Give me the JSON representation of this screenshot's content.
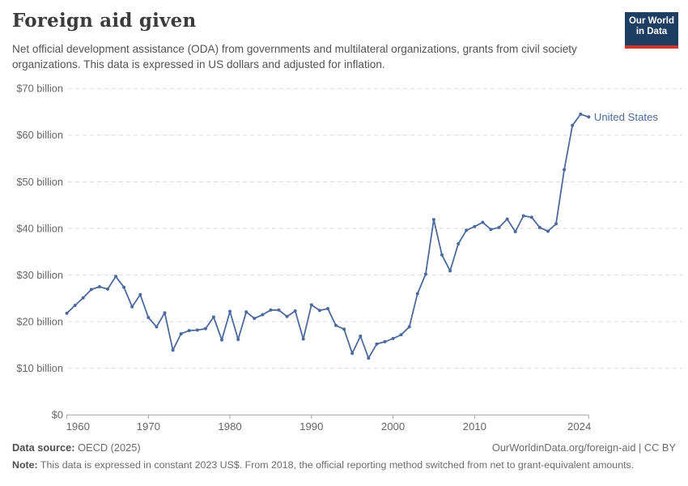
{
  "header": {
    "title": "Foreign aid given",
    "subtitle": "Net official development assistance (ODA) from governments and multilateral organizations, grants from civil society organizations. This data is expressed in US dollars and adjusted for inflation.",
    "logo": {
      "line1": "Our World",
      "line2": "in Data"
    }
  },
  "chart_data": {
    "type": "line",
    "title": "Foreign aid given",
    "xlabel": "",
    "ylabel": "",
    "xlim": [
      1960,
      2024
    ],
    "ylim": [
      0,
      70
    ],
    "grid": "horizontal-dashed",
    "legend_position": "end-of-line-label",
    "x_ticks": [
      {
        "year": 1960,
        "label": "1960"
      },
      {
        "year": 1970,
        "label": "1970"
      },
      {
        "year": 1980,
        "label": "1980"
      },
      {
        "year": 1990,
        "label": "1990"
      },
      {
        "year": 2000,
        "label": "2000"
      },
      {
        "year": 2010,
        "label": "2010"
      },
      {
        "year": 2024,
        "label": "2024"
      }
    ],
    "y_ticks": [
      {
        "value": 0,
        "label": "$0"
      },
      {
        "value": 10,
        "label": "$10 billion"
      },
      {
        "value": 20,
        "label": "$20 billion"
      },
      {
        "value": 30,
        "label": "$30 billion"
      },
      {
        "value": 40,
        "label": "$40 billion"
      },
      {
        "value": 50,
        "label": "$50 billion"
      },
      {
        "value": 60,
        "label": "$60 billion"
      },
      {
        "value": 70,
        "label": "$70 billion"
      }
    ],
    "series": [
      {
        "name": "United States",
        "color": "#4c6a9c",
        "unit": "US$ billion (constant 2023)",
        "x": [
          1960,
          1961,
          1962,
          1963,
          1964,
          1965,
          1966,
          1967,
          1968,
          1969,
          1970,
          1971,
          1972,
          1973,
          1974,
          1975,
          1976,
          1977,
          1978,
          1979,
          1980,
          1981,
          1982,
          1983,
          1984,
          1985,
          1986,
          1987,
          1988,
          1989,
          1990,
          1991,
          1992,
          1993,
          1994,
          1995,
          1996,
          1997,
          1998,
          1999,
          2000,
          2001,
          2002,
          2003,
          2004,
          2005,
          2006,
          2007,
          2008,
          2009,
          2010,
          2011,
          2012,
          2013,
          2014,
          2015,
          2016,
          2017,
          2018,
          2019,
          2020,
          2021,
          2022,
          2023,
          2024
        ],
        "values": [
          21.8,
          23.5,
          25.1,
          26.9,
          27.5,
          27.0,
          29.7,
          27.4,
          23.2,
          25.8,
          20.9,
          18.9,
          21.9,
          13.9,
          17.4,
          18.1,
          18.2,
          18.5,
          21.0,
          16.1,
          22.2,
          16.2,
          22.1,
          20.7,
          21.5,
          22.5,
          22.5,
          21.1,
          22.3,
          16.3,
          23.6,
          22.4,
          22.8,
          19.2,
          18.4,
          13.2,
          16.9,
          12.2,
          15.2,
          15.7,
          16.4,
          17.2,
          18.9,
          26.0,
          30.2,
          41.9,
          34.3,
          30.9,
          36.7,
          39.6,
          40.4,
          41.3,
          39.8,
          40.2,
          42.0,
          39.3,
          42.7,
          42.4,
          40.2,
          39.4,
          41.0,
          52.6,
          62.1,
          64.5,
          63.9
        ]
      }
    ]
  },
  "footer": {
    "datasource_label": "Data source:",
    "datasource_value": " OECD (2025)",
    "link": "OurWorldinData.org/foreign-aid | CC BY",
    "note_label": "Note:",
    "note_value": " This data is expressed in constant 2023 US$. From 2018, the official reporting method switched from net to grant-equivalent amounts."
  },
  "colors": {
    "series_line": "#4c6a9c",
    "grid": "#d9d9d9",
    "axis": "#a3a3a3",
    "tick_text": "#666666",
    "logo_bg": "#1d3d63",
    "logo_red": "#d0342c"
  }
}
